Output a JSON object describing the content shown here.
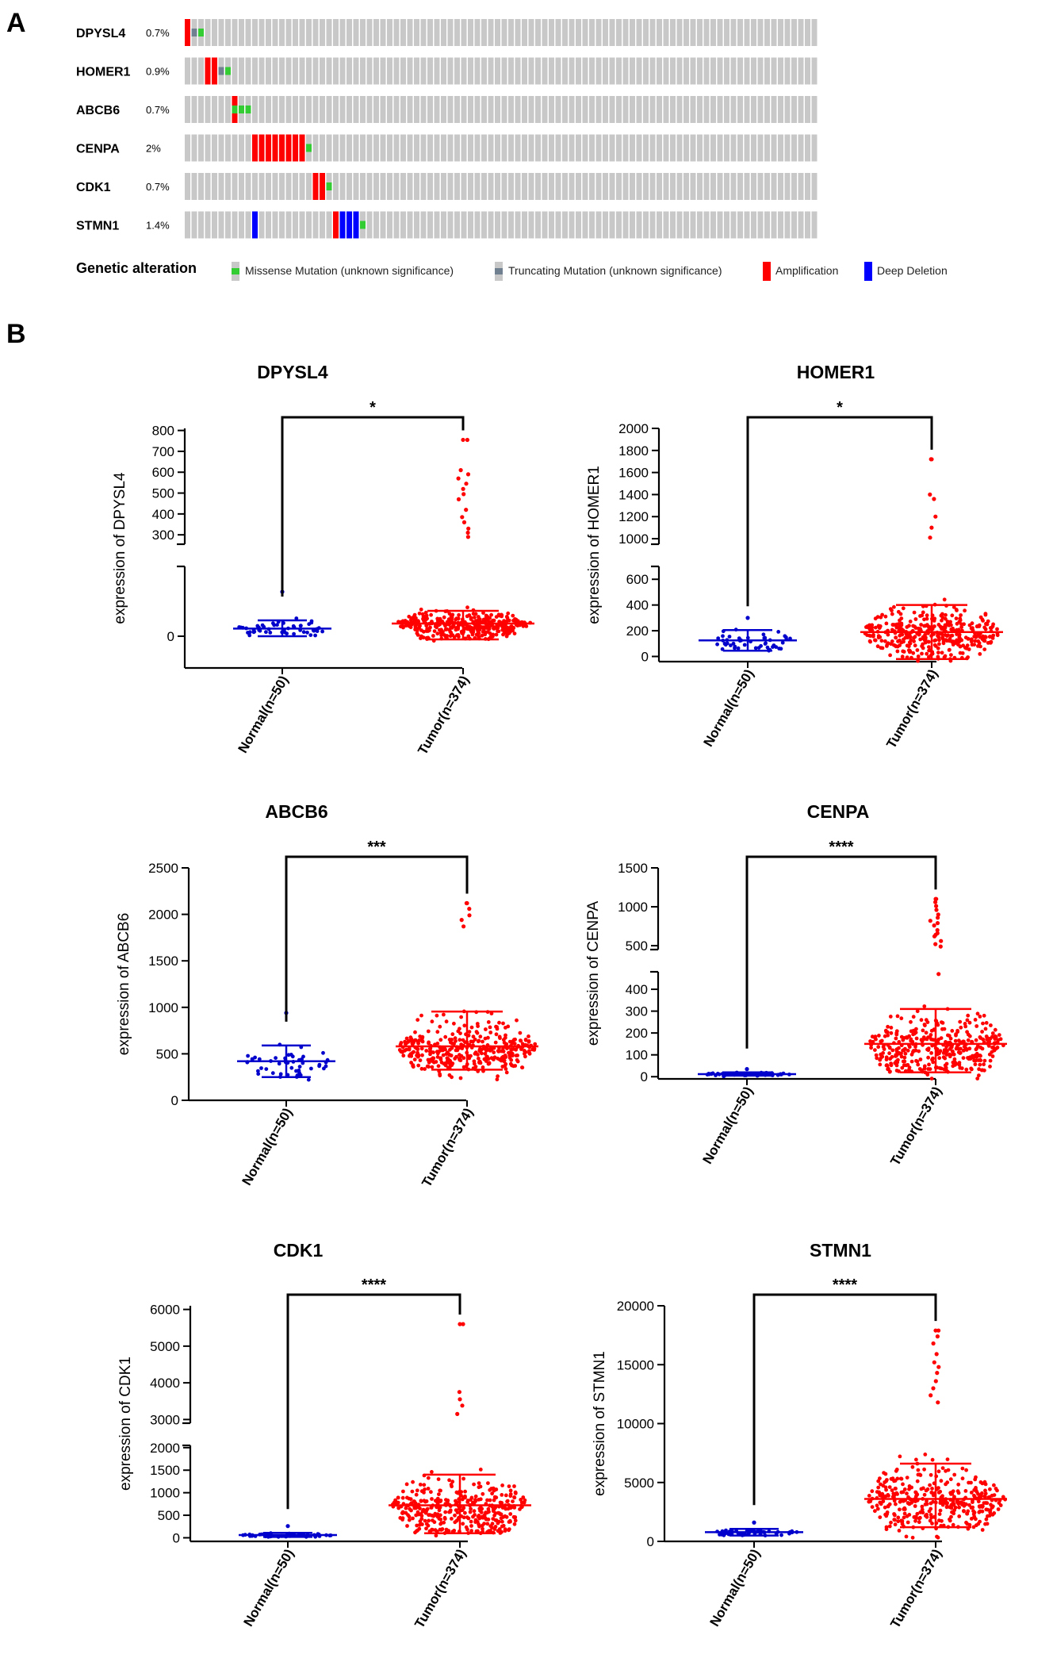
{
  "panel_a": {
    "label": "A",
    "genes": [
      {
        "name": "DPYSL4",
        "pct": "0.7%"
      },
      {
        "name": "HOMER1",
        "pct": "0.9%"
      },
      {
        "name": "ABCB6",
        "pct": "0.7%"
      },
      {
        "name": "CENPA",
        "pct": "2%"
      },
      {
        "name": "CDK1",
        "pct": "0.7%"
      },
      {
        "name": "STMN1",
        "pct": "1.4%"
      }
    ],
    "legend_title": "Genetic alteration",
    "legend": [
      {
        "label": "Missense Mutation (unknown significance)",
        "color": "#33cc33",
        "kind": "missense"
      },
      {
        "label": "Truncating Mutation (unknown significance)",
        "color": "#708090",
        "kind": "truncating"
      },
      {
        "label": "Amplification",
        "color": "#ff0000",
        "kind": "amp"
      },
      {
        "label": "Deep Deletion",
        "color": "#0000ff",
        "kind": "del"
      }
    ],
    "colors": {
      "background": "#c8c8c8",
      "missense": "#33cc33",
      "truncating": "#708090",
      "amp": "#ff0000",
      "del": "#0000ff"
    },
    "alterations": [
      [
        {
          "i": 0,
          "t": "amp"
        },
        {
          "i": 1,
          "t": "truncating"
        },
        {
          "i": 2,
          "t": "missense"
        }
      ],
      [
        {
          "i": 3,
          "t": "amp"
        },
        {
          "i": 4,
          "t": "amp"
        },
        {
          "i": 5,
          "t": "truncating"
        },
        {
          "i": 6,
          "t": "missense"
        }
      ],
      [
        {
          "i": 7,
          "t": "amp_missense"
        },
        {
          "i": 8,
          "t": "missense"
        },
        {
          "i": 9,
          "t": "missense"
        }
      ],
      [
        {
          "i": 10,
          "t": "amp"
        },
        {
          "i": 11,
          "t": "amp"
        },
        {
          "i": 12,
          "t": "amp"
        },
        {
          "i": 13,
          "t": "amp"
        },
        {
          "i": 14,
          "t": "amp"
        },
        {
          "i": 15,
          "t": "amp"
        },
        {
          "i": 16,
          "t": "amp"
        },
        {
          "i": 17,
          "t": "amp"
        },
        {
          "i": 18,
          "t": "missense"
        }
      ],
      [
        {
          "i": 19,
          "t": "amp"
        },
        {
          "i": 20,
          "t": "amp"
        },
        {
          "i": 21,
          "t": "missense"
        }
      ],
      [
        {
          "i": 10,
          "t": "del"
        },
        {
          "i": 22,
          "t": "amp"
        },
        {
          "i": 23,
          "t": "del"
        },
        {
          "i": 24,
          "t": "del"
        },
        {
          "i": 25,
          "t": "del"
        },
        {
          "i": 26,
          "t": "missense"
        }
      ]
    ]
  },
  "panel_b": {
    "label": "B"
  },
  "chart_data": [
    {
      "type": "scatter",
      "title": "DPYSL4",
      "ylabel": "expression of DPYSL4",
      "categories": [
        "Normal(n=50)",
        "Tumor(n=374)"
      ],
      "significance": "*",
      "axis_break": true,
      "lower_ticks": [
        0
      ],
      "lower_ylim": [
        -50,
        110
      ],
      "upper_ticks": [
        300,
        400,
        500,
        600,
        700,
        800
      ],
      "upper_ylim": [
        255,
        810
      ],
      "series": [
        {
          "n": 50,
          "mean": 12,
          "sd_low": 0,
          "sd_high": 25,
          "max": 70,
          "color": "#0000cc"
        },
        {
          "n": 374,
          "mean": 20,
          "sd_low": -5,
          "sd_high": 40,
          "max": 755,
          "color": "#ff0000",
          "outliers": [
            755,
            610,
            590,
            570,
            545,
            520,
            495,
            470,
            420,
            385,
            360,
            330,
            310,
            290
          ]
        }
      ]
    },
    {
      "type": "scatter",
      "title": "HOMER1",
      "ylabel": "expression of HOMER1",
      "categories": [
        "Normal(n=50)",
        "Tumor(n=374)"
      ],
      "significance": "*",
      "axis_break": true,
      "lower_ticks": [
        0,
        200,
        400,
        600
      ],
      "lower_ylim": [
        -40,
        700
      ],
      "upper_ticks": [
        1000,
        1200,
        1400,
        1600,
        1800,
        2000
      ],
      "upper_ylim": [
        950,
        2000
      ],
      "series": [
        {
          "n": 50,
          "mean": 125,
          "sd_low": 45,
          "sd_high": 205,
          "max": 300,
          "color": "#0000cc"
        },
        {
          "n": 374,
          "mean": 190,
          "sd_low": -20,
          "sd_high": 400,
          "max": 1720,
          "color": "#ff0000",
          "outliers": [
            1720,
            1400,
            1360,
            1200,
            1100,
            1010
          ]
        }
      ]
    },
    {
      "type": "scatter",
      "title": "ABCB6",
      "ylabel": "expression of ABCB6",
      "categories": [
        "Normal(n=50)",
        "Tumor(n=374)"
      ],
      "significance": "***",
      "axis_break": false,
      "ticks": [
        0,
        500,
        1000,
        1500,
        2000,
        2500
      ],
      "ylim": [
        0,
        2500
      ],
      "series": [
        {
          "n": 50,
          "mean": 420,
          "sd_low": 250,
          "sd_high": 590,
          "max": 940,
          "color": "#0000cc"
        },
        {
          "n": 374,
          "mean": 580,
          "sd_low": 330,
          "sd_high": 955,
          "max": 2120,
          "color": "#ff0000",
          "outliers": [
            2120,
            2060,
            1990,
            1940,
            1870
          ]
        }
      ]
    },
    {
      "type": "scatter",
      "title": "CENPA",
      "ylabel": "expression of CENPA",
      "categories": [
        "Normal(n=50)",
        "Tumor(n=374)"
      ],
      "significance": "****",
      "axis_break": true,
      "lower_ticks": [
        0,
        100,
        200,
        300,
        400
      ],
      "lower_ylim": [
        -10,
        480
      ],
      "upper_ticks": [
        500,
        1000,
        1500
      ],
      "upper_ylim": [
        450,
        1500
      ],
      "series": [
        {
          "n": 50,
          "mean": 12,
          "sd_low": 5,
          "sd_high": 20,
          "max": 35,
          "color": "#0000cc"
        },
        {
          "n": 374,
          "mean": 150,
          "sd_low": 20,
          "sd_high": 310,
          "max": 1100,
          "color": "#ff0000",
          "outliers": [
            1100,
            1060,
            1010,
            960,
            900,
            860,
            820,
            790,
            760,
            700,
            660,
            640,
            620,
            560,
            520,
            490,
            470
          ]
        }
      ]
    },
    {
      "type": "scatter",
      "title": "CDK1",
      "ylabel": "expression of CDK1",
      "categories": [
        "Normal(n=50)",
        "Tumor(n=374)"
      ],
      "significance": "****",
      "axis_break": true,
      "lower_ticks": [
        0,
        500,
        1000,
        1500,
        2000
      ],
      "lower_ylim": [
        -80,
        2050
      ],
      "upper_ticks": [
        3000,
        4000,
        5000,
        6000
      ],
      "upper_ylim": [
        2900,
        6100
      ],
      "series": [
        {
          "n": 50,
          "mean": 60,
          "sd_low": 20,
          "sd_high": 110,
          "max": 260,
          "color": "#0000cc"
        },
        {
          "n": 374,
          "mean": 720,
          "sd_low": 100,
          "sd_high": 1400,
          "max": 5600,
          "color": "#ff0000",
          "outliers": [
            5600,
            3750,
            3550,
            3380,
            3150
          ]
        }
      ]
    },
    {
      "type": "scatter",
      "title": "STMN1",
      "ylabel": "expression of STMN1",
      "categories": [
        "Normal(n=50)",
        "Tumor(n=374)"
      ],
      "significance": "****",
      "axis_break": false,
      "ticks": [
        0,
        5000,
        10000,
        15000,
        20000
      ],
      "ylim": [
        0,
        20000
      ],
      "series": [
        {
          "n": 50,
          "mean": 780,
          "sd_low": 500,
          "sd_high": 1060,
          "max": 1600,
          "color": "#0000cc"
        },
        {
          "n": 374,
          "mean": 3600,
          "sd_low": 1200,
          "sd_high": 6600,
          "max": 17900,
          "color": "#ff0000",
          "outliers": [
            17900,
            17400,
            16800,
            15900,
            15200,
            14800,
            14300,
            13600,
            13000,
            12400,
            11800
          ]
        }
      ]
    }
  ]
}
